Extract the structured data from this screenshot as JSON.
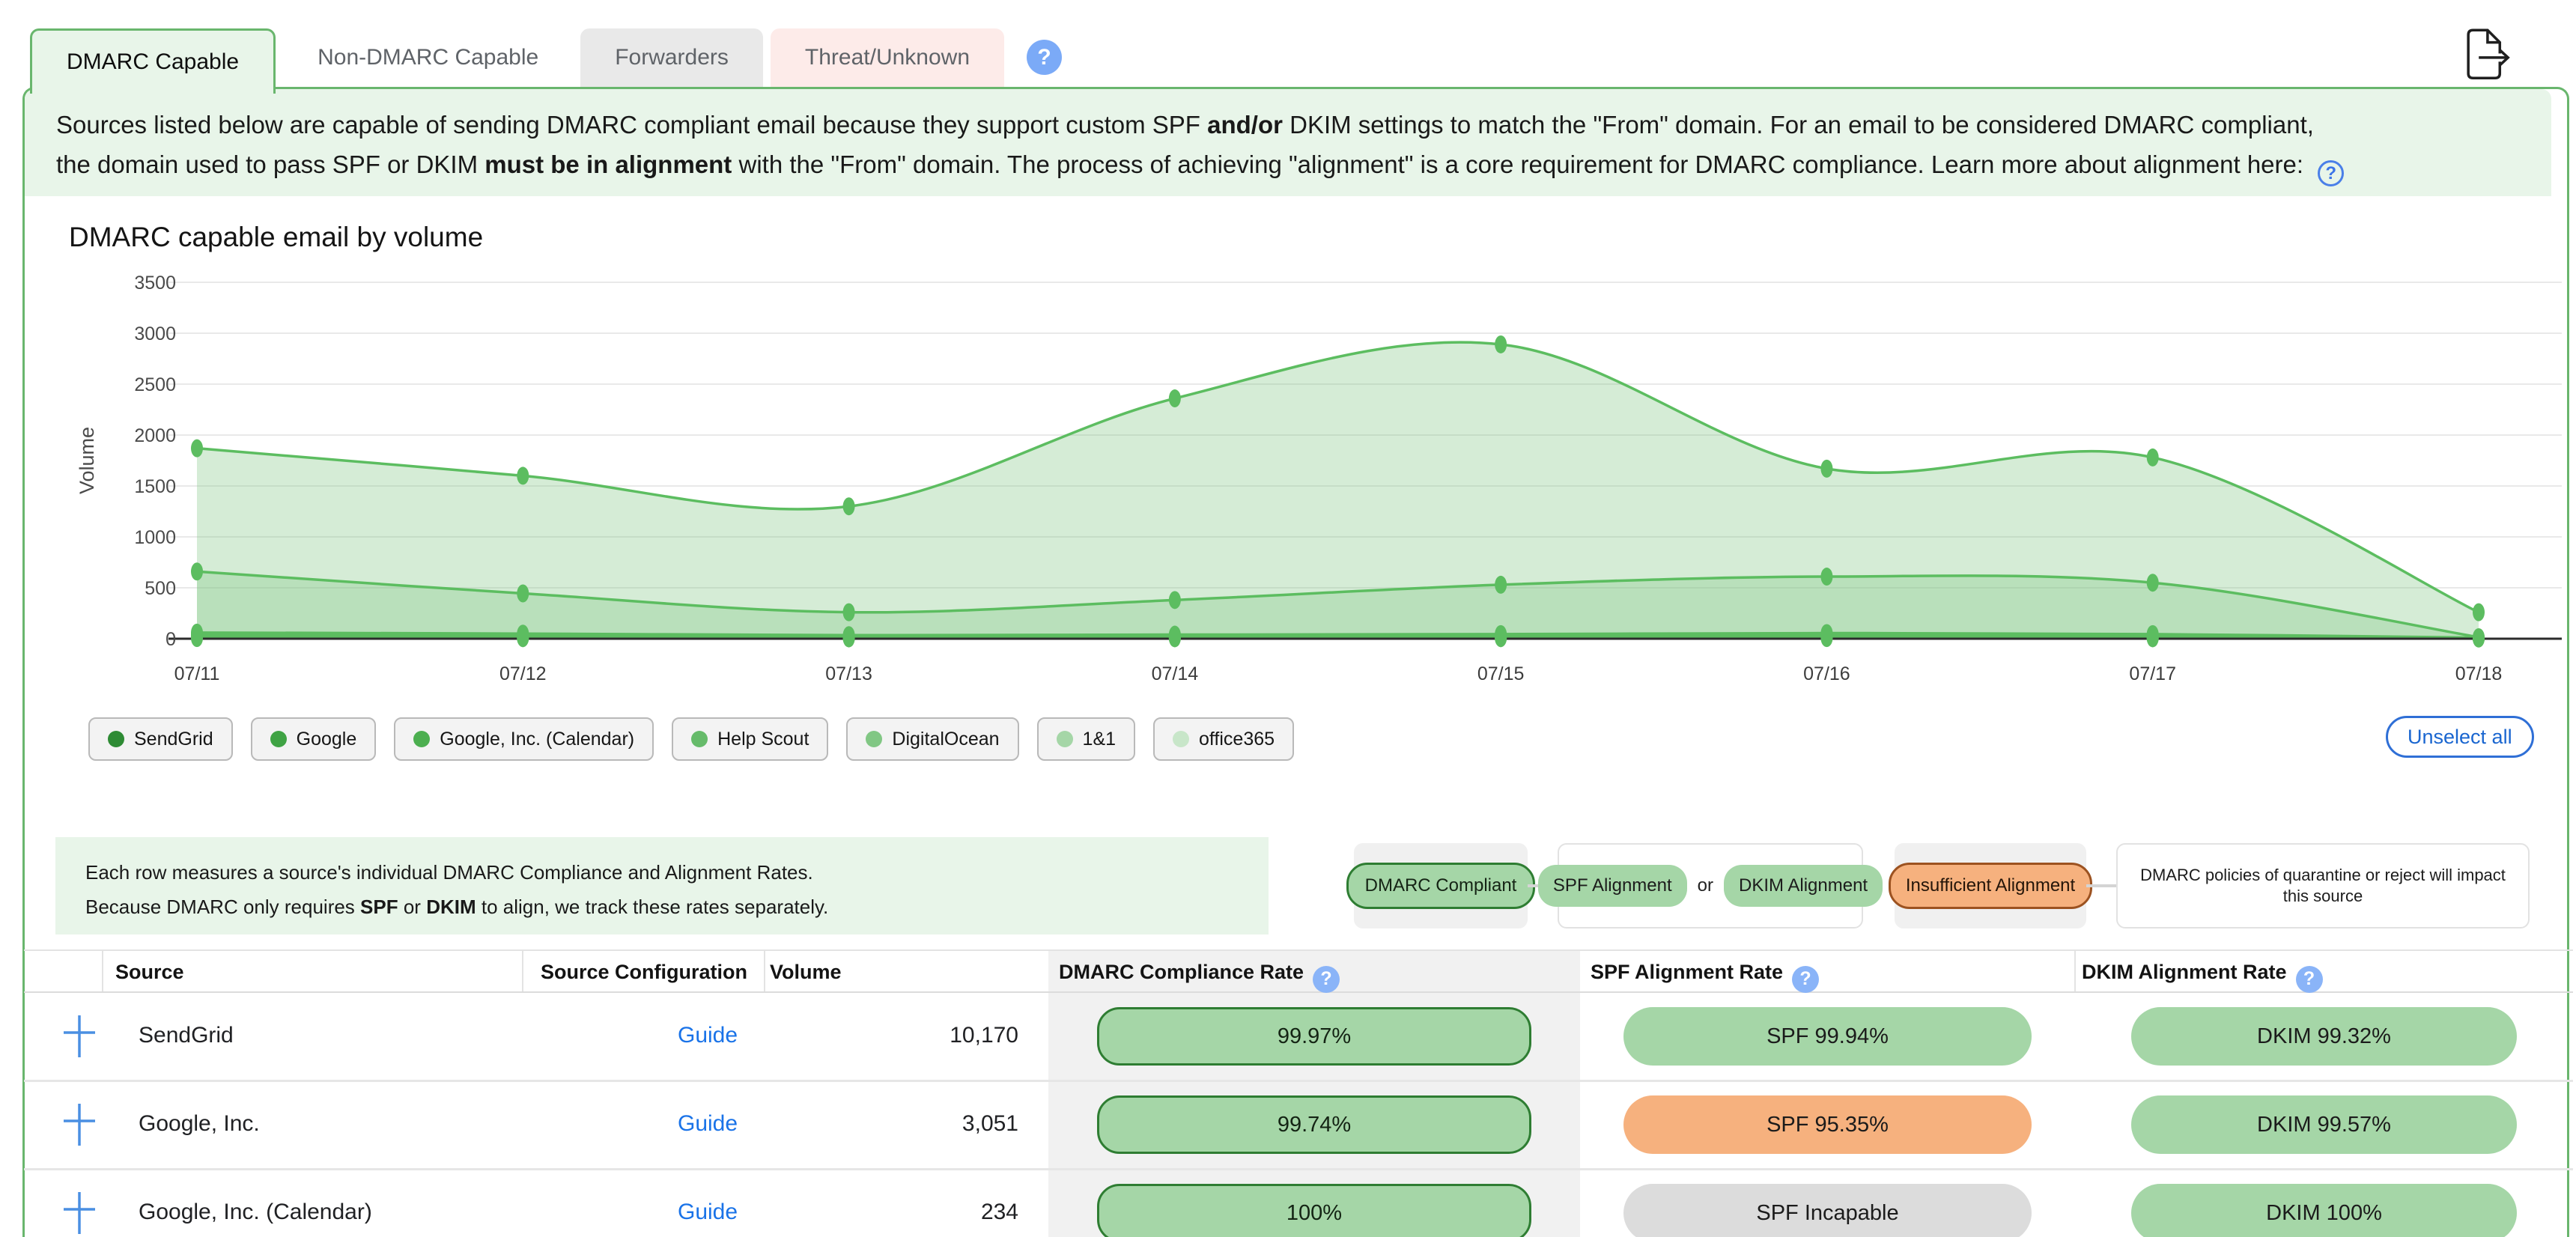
{
  "tabs": [
    {
      "label": "DMARC Capable",
      "state": "active"
    },
    {
      "label": "Non-DMARC Capable",
      "state": "plain"
    },
    {
      "label": "Forwarders",
      "state": "gray"
    },
    {
      "label": "Threat/Unknown",
      "state": "pink"
    }
  ],
  "icons": {
    "help_glyph": "?"
  },
  "banner": {
    "line1": [
      {
        "t": "Sources listed below are capable of sending DMARC compliant email because they support custom SPF "
      },
      {
        "t": "and/or",
        "b": true
      },
      {
        "t": " DKIM settings to match the \"From\" domain. For an email to be considered DMARC compliant,"
      }
    ],
    "line2": [
      {
        "t": "the domain used to pass SPF or DKIM "
      },
      {
        "t": "must be in alignment",
        "b": true
      },
      {
        "t": " with the \"From\" domain. The process of achieving \"alignment\" is a core requirement for DMARC compliance. Learn more about alignment here: "
      }
    ]
  },
  "chart_data": {
    "type": "area",
    "title": "DMARC capable email by volume",
    "xlabel": "",
    "ylabel": "Volume",
    "categories": [
      "07/11",
      "07/12",
      "07/13",
      "07/14",
      "07/15",
      "07/16",
      "07/17",
      "07/18"
    ],
    "ylim": [
      0,
      3500
    ],
    "ytick_step": 500,
    "grid": true,
    "legend_position": "bottom",
    "line_color": "#5cbd60",
    "fill_color": "#7cc47f",
    "series": [
      {
        "name": "SendGrid",
        "values": [
          1870,
          1600,
          1300,
          2360,
          2890,
          1670,
          1780,
          260
        ],
        "fill_opacity": 0.32
      },
      {
        "name": "Google",
        "values": [
          660,
          445,
          260,
          380,
          530,
          610,
          550,
          15
        ],
        "fill_opacity": 0.3
      },
      {
        "name": "Google, Inc. (Calendar)",
        "values": [
          60,
          50,
          35,
          40,
          45,
          55,
          45,
          10
        ],
        "fill_opacity": 0.25
      },
      {
        "name": "Help Scout",
        "values": [
          40,
          32,
          22,
          26,
          32,
          38,
          30,
          6
        ],
        "fill_opacity": 0.25
      },
      {
        "name": "DigitalOcean",
        "values": [
          25,
          20,
          14,
          16,
          20,
          24,
          18,
          4
        ],
        "fill_opacity": 0.25
      },
      {
        "name": "1&1",
        "values": [
          12,
          10,
          7,
          8,
          10,
          12,
          9,
          3
        ],
        "fill_opacity": 0.25
      },
      {
        "name": "office365",
        "values": [
          6,
          5,
          3,
          4,
          5,
          6,
          4,
          2
        ],
        "fill_opacity": 0.25
      }
    ]
  },
  "legend": {
    "sources": [
      {
        "label": "SendGrid",
        "color": "#2e8b34"
      },
      {
        "label": "Google",
        "color": "#3fa344"
      },
      {
        "label": "Google, Inc. (Calendar)",
        "color": "#4caf50"
      },
      {
        "label": "Help Scout",
        "color": "#66bb6a"
      },
      {
        "label": "DigitalOcean",
        "color": "#81c784"
      },
      {
        "label": "1&1",
        "color": "#a5d6a7"
      },
      {
        "label": "office365",
        "color": "#c8e6c9"
      }
    ],
    "unselect_label": "Unselect all"
  },
  "info_box": {
    "line1": [
      {
        "t": "Each row measures a source's individual DMARC Compliance and Alignment Rates."
      }
    ],
    "line2": [
      {
        "t": "Because DMARC only requires "
      },
      {
        "t": "SPF",
        "b": true
      },
      {
        "t": " or "
      },
      {
        "t": "DKIM",
        "b": true
      },
      {
        "t": " to align, we track these rates separately."
      }
    ]
  },
  "rate_legend": {
    "dmarc_pill": "DMARC Compliant",
    "spf_pill": "SPF Alignment",
    "or_label": "or",
    "dkim_pill": "DKIM Alignment",
    "insufficient_pill": "Insufficient Alignment",
    "note": "DMARC policies of quarantine or reject will impact this source"
  },
  "table": {
    "headers": {
      "source": "Source",
      "config": "Source Configuration",
      "volume": "Volume",
      "dmarc": "DMARC Compliance Rate",
      "spf": "SPF Alignment Rate",
      "dkim": "DKIM Alignment Rate"
    },
    "rows": [
      {
        "source": "SendGrid",
        "config_link": "Guide",
        "volume": "10,170",
        "compliance": {
          "text": "99.97%"
        },
        "spf": {
          "text": "SPF 99.94%",
          "variant": "green"
        },
        "dkim": {
          "text": "DKIM 99.32%",
          "variant": "green"
        }
      },
      {
        "source": "Google, Inc.",
        "config_link": "Guide",
        "volume": "3,051",
        "compliance": {
          "text": "99.74%"
        },
        "spf": {
          "text": "SPF 95.35%",
          "variant": "orange"
        },
        "dkim": {
          "text": "DKIM 99.57%",
          "variant": "green"
        }
      },
      {
        "source": "Google, Inc. (Calendar)",
        "config_link": "Guide",
        "volume": "234",
        "compliance": {
          "text": "100%"
        },
        "spf": {
          "text": "SPF Incapable",
          "variant": "gray"
        },
        "dkim": {
          "text": "DKIM 100%",
          "variant": "green"
        }
      }
    ]
  }
}
